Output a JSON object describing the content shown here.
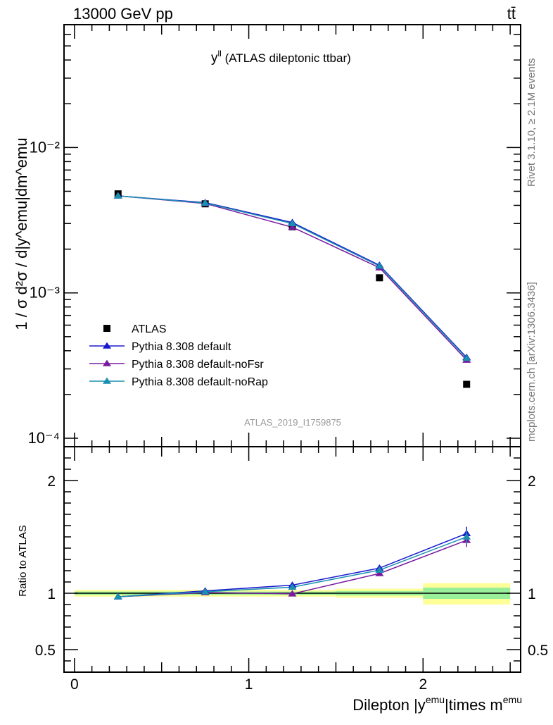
{
  "header": {
    "energy_label": "13000 GeV pp",
    "process_label": "tt̄"
  },
  "side_labels": {
    "rivet": "Rivet 3.1.10, ≥ 2.1M events",
    "mcplots": "mcplots.cern.ch [arXiv:1306.3436]"
  },
  "watermark": "ATLAS_2019_I1759875",
  "chart_data": [
    {
      "type": "scatter",
      "title_main": "y",
      "title_sup": "ll",
      "title_rest": " (ATLAS dileptonic ttbar)",
      "ylabel": "1 / σ  d²σ / d|y^emu|dm^emu",
      "yscale": "log",
      "ylim": [
        8.75e-05,
        0.07
      ],
      "xlim": [
        -0.06,
        2.56
      ],
      "ytick_labels": [
        "10⁻⁴",
        "10⁻³",
        "10⁻²"
      ],
      "x": [
        0.25,
        0.75,
        1.25,
        1.75,
        2.25
      ],
      "series": [
        {
          "name": "ATLAS",
          "marker": "square",
          "color": "#000000",
          "values": [
            0.0048,
            0.0041,
            0.00285,
            0.00127,
            0.000235
          ]
        },
        {
          "name": "Pythia 8.308 default",
          "marker": "triangle",
          "color": "#1a1acd",
          "values": [
            0.00465,
            0.00418,
            0.00305,
            0.00155,
            0.00036
          ]
        },
        {
          "name": "Pythia 8.308 default-noFsr",
          "marker": "triangle",
          "color": "#7a1a9e",
          "values": [
            0.00465,
            0.00412,
            0.00283,
            0.00149,
            0.000345
          ]
        },
        {
          "name": "Pythia 8.308 default-noRap",
          "marker": "triangle",
          "color": "#1a8fb0",
          "values": [
            0.00465,
            0.00415,
            0.003,
            0.00153,
            0.000355
          ]
        }
      ]
    },
    {
      "type": "line",
      "ylabel": "Ratio to ATLAS",
      "xlabel_main": "Dilepton |y",
      "xlabel_sup1": "emu",
      "xlabel_mid": "|times m",
      "xlabel_sup2": "emu",
      "ylim": [
        0.3,
        2.3
      ],
      "xlim": [
        -0.06,
        2.56
      ],
      "yticks": [
        0.5,
        1,
        2
      ],
      "ytick_labels": [
        "0.5",
        "1",
        "2"
      ],
      "xticks": [
        0,
        1,
        2
      ],
      "xtick_labels": [
        "0",
        "1",
        "2"
      ],
      "x": [
        0.25,
        0.75,
        1.25,
        1.75,
        2.25
      ],
      "bands": [
        {
          "x0": 0.0,
          "x1": 0.5,
          "inner": [
            0.985,
            1.015
          ],
          "outer": [
            0.97,
            1.03
          ]
        },
        {
          "x0": 0.5,
          "x1": 1.0,
          "inner": [
            0.985,
            1.015
          ],
          "outer": [
            0.97,
            1.03
          ]
        },
        {
          "x0": 1.0,
          "x1": 1.5,
          "inner": [
            0.985,
            1.015
          ],
          "outer": [
            0.97,
            1.03
          ]
        },
        {
          "x0": 1.5,
          "x1": 2.0,
          "inner": [
            0.98,
            1.02
          ],
          "outer": [
            0.96,
            1.04
          ]
        },
        {
          "x0": 2.0,
          "x1": 2.5,
          "inner": [
            0.95,
            1.05
          ],
          "outer": [
            0.9,
            1.09
          ]
        }
      ],
      "band_colors": {
        "inner": "#99ee99",
        "outer": "#ffff99"
      },
      "series": [
        {
          "name": "Pythia 8.308 default",
          "color": "#1a1acd",
          "values": [
            0.969,
            1.021,
            1.072,
            1.223,
            1.53
          ],
          "err": [
            0.003,
            0.005,
            0.008,
            0.02,
            0.06
          ]
        },
        {
          "name": "Pythia 8.308 default-noFsr",
          "color": "#7a1a9e",
          "values": [
            0.969,
            1.006,
            0.995,
            1.175,
            1.47
          ],
          "err": [
            0.003,
            0.005,
            0.008,
            0.02,
            0.06
          ]
        },
        {
          "name": "Pythia 8.308 default-noRap",
          "color": "#1a8fb0",
          "values": [
            0.969,
            1.013,
            1.054,
            1.205,
            1.5
          ],
          "err": [
            0.003,
            0.005,
            0.008,
            0.02,
            0.06
          ]
        }
      ]
    }
  ]
}
